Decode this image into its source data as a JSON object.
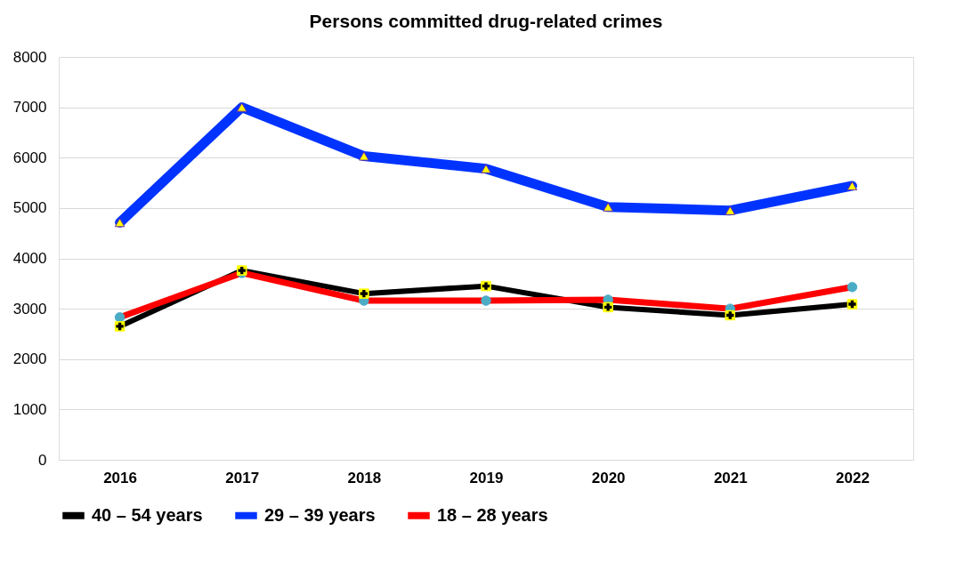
{
  "chart_data": {
    "type": "line",
    "title": "Persons committed drug-related crimes",
    "categories": [
      "2016",
      "2017",
      "2018",
      "2019",
      "2020",
      "2021",
      "2022"
    ],
    "series": [
      {
        "name": "40 – 54 years",
        "color": "#000000",
        "marker": "cross",
        "values": [
          2650,
          3760,
          3300,
          3450,
          3030,
          2870,
          3090
        ]
      },
      {
        "name": "29 – 39 years",
        "color": "#0033ff",
        "marker": "triangle",
        "values": [
          4710,
          7000,
          6030,
          5780,
          5020,
          4950,
          5440
        ]
      },
      {
        "name": "18 – 28 years",
        "color": "#ff0000",
        "marker": "circle",
        "values": [
          2830,
          3710,
          3160,
          3160,
          3180,
          3000,
          3430
        ]
      }
    ],
    "ylim": [
      0,
      8000
    ],
    "yticks": [
      0,
      1000,
      2000,
      3000,
      4000,
      5000,
      6000,
      7000,
      8000
    ],
    "grid": "y",
    "legend": "bottom"
  }
}
